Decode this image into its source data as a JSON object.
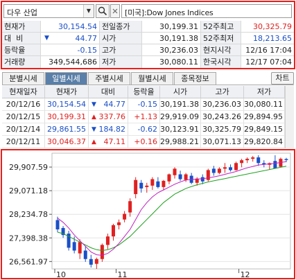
{
  "search": {
    "market": "다우 산업",
    "symbol": "[미국]:Dow Jones Indices"
  },
  "summary": {
    "rows": [
      [
        {
          "label": "현재가",
          "value": "30,154.54",
          "color": "dn"
        },
        {
          "label": "전일종가",
          "value": "30,199.31"
        },
        {
          "label": "52주최고",
          "value": "30,325.79",
          "color": "up"
        }
      ],
      [
        {
          "label": "대  비",
          "value": "44.77",
          "arrow": "▼",
          "color": "dn"
        },
        {
          "label": "시가",
          "value": "30,191.38"
        },
        {
          "label": "52주최저",
          "value": "18,213.65",
          "color": "dn"
        }
      ],
      [
        {
          "label": "등락율",
          "value": "-0.15",
          "color": "dn"
        },
        {
          "label": "고가",
          "value": "30,236.03"
        },
        {
          "label": "현지시각",
          "value": "12/16 17:04"
        }
      ],
      [
        {
          "label": "거래량",
          "value": "349,544,686"
        },
        {
          "label": "저가",
          "value": "30,080.11"
        },
        {
          "label": "한국시각",
          "value": "12/17 07:04"
        }
      ]
    ]
  },
  "tabs": [
    "분별시세",
    "일별시세",
    "주별시세",
    "월별시세",
    "종목정보"
  ],
  "active_tab": 1,
  "chart_button": "차트",
  "table": {
    "headers": [
      "현재일자",
      "현재가",
      "대비",
      "등락율",
      "시가",
      "고가",
      "저가"
    ],
    "rows": [
      {
        "date": "20/12/16",
        "price": "30,154.54",
        "dir": "down",
        "arrow": "▼",
        "change": "44.77",
        "rate": "-0.15",
        "open": "30,191.38",
        "high": "30,236.03",
        "low": "30,080.11"
      },
      {
        "date": "20/12/15",
        "price": "30,199.31",
        "dir": "up",
        "arrow": "▲",
        "change": "337.76",
        "rate": "+1.13",
        "open": "29,919.09",
        "high": "30,243.26",
        "low": "29,894.95"
      },
      {
        "date": "20/12/14",
        "price": "29,861.55",
        "dir": "down",
        "arrow": "▼",
        "change": "184.82",
        "rate": "-0.62",
        "open": "30,123.91",
        "high": "30,325.79",
        "low": "29,849.15"
      },
      {
        "date": "20/12/11",
        "price": "30,046.37",
        "dir": "up",
        "arrow": "▲",
        "change": "47.11",
        "rate": "+0.16",
        "open": "29,988.21",
        "high": "30,071.13",
        "low": "29,820.84"
      }
    ]
  },
  "colors": {
    "up": "#e02020",
    "down": "#1a4fc8",
    "ma_short": "#c020c0",
    "ma_long": "#20a020",
    "frame": "#e8201c"
  },
  "chart_data": {
    "type": "candlestick",
    "y_ticks": [
      "29,907.59",
      "29,071.18",
      "28,234.78",
      "27,398.38",
      "26,561.97"
    ],
    "ylim": [
      26300,
      30400
    ],
    "x_labels": [
      "10",
      "11",
      "12"
    ],
    "candles": [
      {
        "o": 28030,
        "h": 28150,
        "l": 27600,
        "c": 27700,
        "d": "down"
      },
      {
        "o": 27750,
        "h": 27820,
        "l": 27400,
        "c": 27500,
        "d": "down"
      },
      {
        "o": 27550,
        "h": 27650,
        "l": 26950,
        "c": 27050,
        "d": "down"
      },
      {
        "o": 27250,
        "h": 27450,
        "l": 26850,
        "c": 26950,
        "d": "down"
      },
      {
        "o": 26850,
        "h": 27350,
        "l": 26650,
        "c": 27250,
        "d": "up"
      },
      {
        "o": 26950,
        "h": 27100,
        "l": 26550,
        "c": 26650,
        "d": "down"
      },
      {
        "o": 26650,
        "h": 26800,
        "l": 26350,
        "c": 26450,
        "d": "down"
      },
      {
        "o": 26480,
        "h": 26700,
        "l": 26300,
        "c": 26650,
        "d": "up"
      },
      {
        "o": 26650,
        "h": 27200,
        "l": 26550,
        "c": 27150,
        "d": "up"
      },
      {
        "o": 27150,
        "h": 27550,
        "l": 27000,
        "c": 27450,
        "d": "up"
      },
      {
        "o": 27450,
        "h": 27900,
        "l": 27300,
        "c": 27850,
        "d": "up"
      },
      {
        "o": 27850,
        "h": 28050,
        "l": 27700,
        "c": 27950,
        "d": "up"
      },
      {
        "o": 28050,
        "h": 28350,
        "l": 27950,
        "c": 28250,
        "d": "up"
      },
      {
        "o": 28300,
        "h": 28800,
        "l": 28150,
        "c": 28700,
        "d": "up"
      },
      {
        "o": 28950,
        "h": 29550,
        "l": 28800,
        "c": 29450,
        "d": "up"
      },
      {
        "o": 29350,
        "h": 29450,
        "l": 29000,
        "c": 29150,
        "d": "down"
      },
      {
        "o": 29200,
        "h": 29350,
        "l": 29000,
        "c": 29250,
        "d": "up"
      },
      {
        "o": 29250,
        "h": 29550,
        "l": 29100,
        "c": 29480,
        "d": "up"
      },
      {
        "o": 29400,
        "h": 29550,
        "l": 29150,
        "c": 29200,
        "d": "down"
      },
      {
        "o": 29200,
        "h": 29450,
        "l": 29100,
        "c": 29420,
        "d": "up"
      },
      {
        "o": 29400,
        "h": 29680,
        "l": 29300,
        "c": 29650,
        "d": "up"
      },
      {
        "o": 29620,
        "h": 29900,
        "l": 29500,
        "c": 29850,
        "d": "up"
      },
      {
        "o": 29650,
        "h": 29780,
        "l": 29420,
        "c": 29480,
        "d": "down"
      },
      {
        "o": 29450,
        "h": 29700,
        "l": 29380,
        "c": 29650,
        "d": "up"
      },
      {
        "o": 29600,
        "h": 29700,
        "l": 29300,
        "c": 29350,
        "d": "down"
      },
      {
        "o": 29350,
        "h": 29550,
        "l": 29250,
        "c": 29500,
        "d": "up"
      },
      {
        "o": 29550,
        "h": 29650,
        "l": 29300,
        "c": 29400,
        "d": "down"
      },
      {
        "o": 29450,
        "h": 29850,
        "l": 29400,
        "c": 29800,
        "d": "up"
      },
      {
        "o": 29850,
        "h": 29950,
        "l": 29600,
        "c": 29700,
        "d": "down"
      },
      {
        "o": 29700,
        "h": 29900,
        "l": 29650,
        "c": 29850,
        "d": "up"
      },
      {
        "o": 29850,
        "h": 30050,
        "l": 29700,
        "c": 29900,
        "d": "up"
      },
      {
        "o": 29900,
        "h": 30000,
        "l": 29750,
        "c": 29800,
        "d": "down"
      },
      {
        "o": 29800,
        "h": 30100,
        "l": 29780,
        "c": 30050,
        "d": "up"
      },
      {
        "o": 30050,
        "h": 30200,
        "l": 29900,
        "c": 30150,
        "d": "up"
      },
      {
        "o": 30150,
        "h": 30250,
        "l": 30050,
        "c": 30200,
        "d": "up"
      },
      {
        "o": 30200,
        "h": 30300,
        "l": 30100,
        "c": 30250,
        "d": "up"
      },
      {
        "o": 30250,
        "h": 30325,
        "l": 29950,
        "c": 30050,
        "d": "down"
      },
      {
        "o": 30050,
        "h": 30150,
        "l": 29900,
        "c": 30000,
        "d": "down"
      },
      {
        "o": 29988,
        "h": 30071,
        "l": 29820,
        "c": 30046,
        "d": "up"
      },
      {
        "o": 30124,
        "h": 30326,
        "l": 29849,
        "c": 29862,
        "d": "down"
      },
      {
        "o": 29919,
        "h": 30243,
        "l": 29895,
        "c": 30199,
        "d": "up"
      },
      {
        "o": 30191,
        "h": 30236,
        "l": 30080,
        "c": 30155,
        "d": "down"
      }
    ],
    "ma_short": [
      28100,
      27950,
      27750,
      27500,
      27300,
      27100,
      26900,
      26800,
      26780,
      26850,
      27000,
      27200,
      27450,
      27700,
      28050,
      28400,
      28650,
      28850,
      29000,
      29100,
      29200,
      29300,
      29380,
      29450,
      29470,
      29480,
      29500,
      29520,
      29560,
      29600,
      29650,
      29700,
      29750,
      29820,
      29880,
      29930,
      29980,
      30000,
      30020,
      30040,
      30070,
      30100
    ],
    "ma_long": [
      27600,
      27550,
      27450,
      27350,
      27250,
      27150,
      27050,
      26980,
      26950,
      26980,
      27050,
      27150,
      27300,
      27450,
      27650,
      27850,
      28050,
      28250,
      28450,
      28650,
      28800,
      28950,
      29050,
      29150,
      29220,
      29280,
      29330,
      29380,
      29420,
      29460,
      29500,
      29540,
      29580,
      29620,
      29660,
      29700,
      29740,
      29780,
      29820,
      29860,
      29900,
      29940
    ]
  }
}
